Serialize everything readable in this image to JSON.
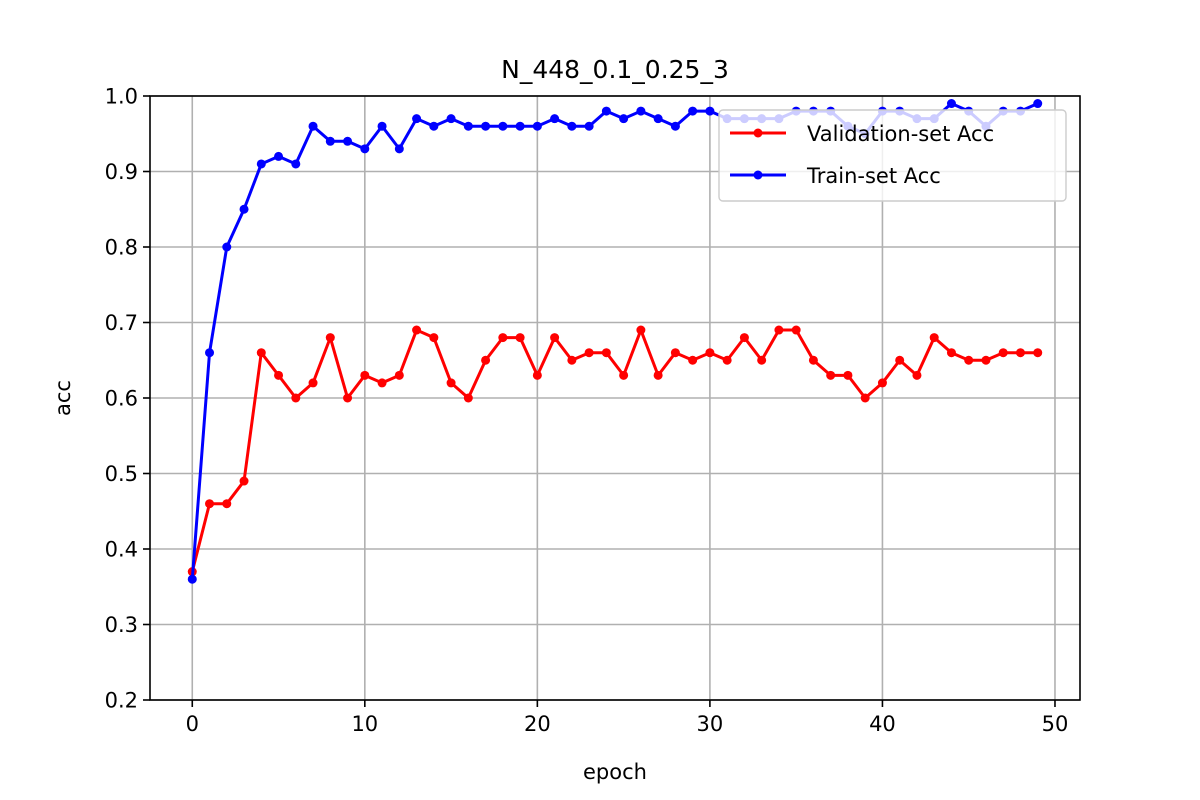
{
  "chart_data": {
    "type": "line",
    "title": "N_448_0.1_0.25_3",
    "xlabel": "epoch",
    "ylabel": "acc",
    "xlim": [
      -2.45,
      51.45
    ],
    "ylim": [
      0.2,
      1.0
    ],
    "xticks": [
      0,
      10,
      20,
      30,
      40,
      50
    ],
    "yticks": [
      0.2,
      0.3,
      0.4,
      0.5,
      0.6,
      0.7,
      0.8,
      0.9,
      1.0
    ],
    "grid": true,
    "legend_position": "top-right",
    "x": [
      0,
      1,
      2,
      3,
      4,
      5,
      6,
      7,
      8,
      9,
      10,
      11,
      12,
      13,
      14,
      15,
      16,
      17,
      18,
      19,
      20,
      21,
      22,
      23,
      24,
      25,
      26,
      27,
      28,
      29,
      30,
      31,
      32,
      33,
      34,
      35,
      36,
      37,
      38,
      39,
      40,
      41,
      42,
      43,
      44,
      45,
      46,
      47,
      48,
      49
    ],
    "series": [
      {
        "name": "Validation-set Acc",
        "color": "#ff0000",
        "values": [
          0.37,
          0.46,
          0.46,
          0.49,
          0.66,
          0.63,
          0.6,
          0.62,
          0.68,
          0.6,
          0.63,
          0.62,
          0.63,
          0.69,
          0.68,
          0.62,
          0.6,
          0.65,
          0.68,
          0.68,
          0.63,
          0.68,
          0.65,
          0.66,
          0.66,
          0.63,
          0.69,
          0.63,
          0.66,
          0.65,
          0.66,
          0.65,
          0.68,
          0.65,
          0.69,
          0.69,
          0.65,
          0.63,
          0.63,
          0.6,
          0.62,
          0.65,
          0.63,
          0.68,
          0.66,
          0.65,
          0.65,
          0.66,
          0.66,
          0.66
        ]
      },
      {
        "name": "Train-set Acc",
        "color": "#0000ff",
        "values": [
          0.36,
          0.66,
          0.8,
          0.85,
          0.91,
          0.92,
          0.91,
          0.96,
          0.94,
          0.94,
          0.93,
          0.96,
          0.93,
          0.97,
          0.96,
          0.97,
          0.96,
          0.96,
          0.96,
          0.96,
          0.96,
          0.97,
          0.96,
          0.96,
          0.98,
          0.97,
          0.98,
          0.97,
          0.96,
          0.98,
          0.98,
          0.97,
          0.97,
          0.97,
          0.97,
          0.98,
          0.98,
          0.98,
          0.96,
          0.95,
          0.98,
          0.98,
          0.97,
          0.97,
          0.99,
          0.98,
          0.96,
          0.98,
          0.98,
          0.99
        ]
      }
    ]
  }
}
